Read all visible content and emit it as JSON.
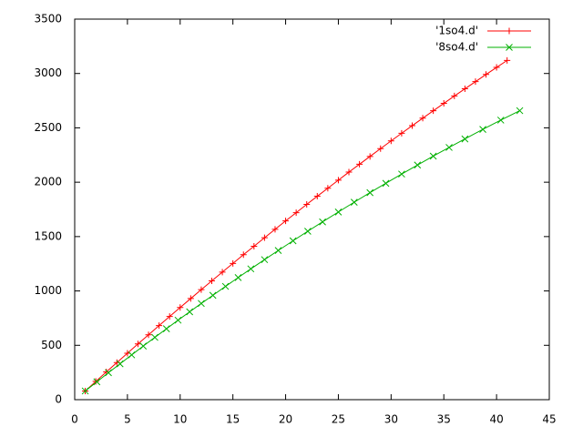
{
  "chart_data": {
    "type": "line",
    "xlim": [
      0,
      45
    ],
    "ylim": [
      0,
      3500
    ],
    "xticks": [
      0,
      5,
      10,
      15,
      20,
      25,
      30,
      35,
      40,
      45
    ],
    "yticks": [
      0,
      500,
      1000,
      1500,
      2000,
      2500,
      3000,
      3500
    ],
    "legend": "top right",
    "series": [
      {
        "name": "'1so4.d'",
        "color": "#ff0000",
        "marker": "+",
        "x": [
          1,
          2,
          3,
          4,
          5,
          6,
          7,
          8,
          9,
          10,
          11,
          12,
          13,
          14,
          15,
          16,
          17,
          18,
          19,
          20,
          21,
          22,
          23,
          24,
          25,
          26,
          27,
          28,
          29,
          30,
          31,
          32,
          33,
          34,
          35,
          36,
          37,
          38,
          39,
          40,
          41
        ],
        "values": [
          80,
          168,
          255,
          341,
          427,
          513,
          597,
          681,
          765,
          848,
          930,
          1012,
          1093,
          1173,
          1253,
          1333,
          1411,
          1489,
          1567,
          1644,
          1720,
          1796,
          1871,
          1945,
          2019,
          2093,
          2165,
          2237,
          2309,
          2380,
          2450,
          2520,
          2589,
          2657,
          2725,
          2793,
          2859,
          2925,
          2991,
          3056,
          3120
        ]
      },
      {
        "name": "'8so4.d'",
        "color": "#00b000",
        "marker": "x",
        "x": [
          1,
          2.1,
          3.2,
          4.3,
          5.4,
          6.5,
          7.6,
          8.7,
          9.8,
          10.9,
          12,
          13.1,
          14.3,
          15.5,
          16.7,
          18,
          19.3,
          20.7,
          22.1,
          23.5,
          25,
          26.5,
          28,
          29.5,
          31,
          32.5,
          34,
          35.5,
          37,
          38.7,
          40.4,
          42.2
        ],
        "values": [
          80,
          164,
          248,
          330,
          412,
          493,
          573,
          652,
          731,
          808,
          885,
          960,
          1042,
          1123,
          1203,
          1288,
          1372,
          1461,
          1549,
          1635,
          1726,
          1816,
          1904,
          1990,
          2075,
          2158,
          2240,
          2320,
          2398,
          2486,
          2571,
          2658
        ]
      }
    ]
  }
}
